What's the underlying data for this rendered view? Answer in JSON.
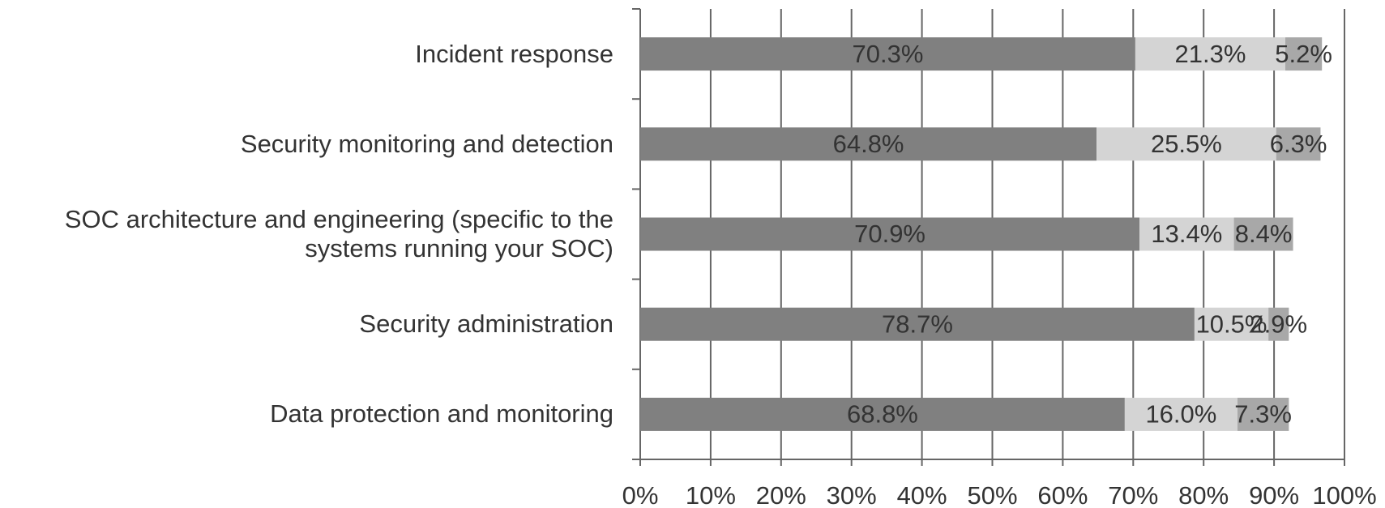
{
  "chart_data": {
    "type": "stacked-bar-horizontal",
    "categories": [
      "Incident response",
      "Security monitoring and detection",
      "SOC architecture and engineering (specific to the systems running your SOC)",
      "Security administration",
      "Data protection and monitoring"
    ],
    "series": [
      {
        "color": "#808080",
        "values": [
          70.3,
          64.8,
          70.9,
          78.7,
          68.8
        ],
        "value_labels": [
          "70.3%",
          "64.8%",
          "70.9%",
          "78.7%",
          "68.8%"
        ]
      },
      {
        "color": "#d4d4d4",
        "values": [
          21.3,
          25.5,
          13.4,
          10.5,
          16.0
        ],
        "value_labels": [
          "21.3%",
          "25.5%",
          "13.4%",
          "10.5%",
          "16.0%"
        ]
      },
      {
        "color": "#a8a8a8",
        "values": [
          5.2,
          6.3,
          8.4,
          2.9,
          7.3
        ],
        "value_labels": [
          "5.2%",
          "6.3%",
          "8.4%",
          "2.9%",
          "7.3%"
        ]
      }
    ],
    "xlim": [
      0,
      100
    ],
    "xticks": [
      {
        "value": 0,
        "label": "0%"
      },
      {
        "value": 10,
        "label": "10%"
      },
      {
        "value": 20,
        "label": "20%"
      },
      {
        "value": 30,
        "label": "30%"
      },
      {
        "value": 40,
        "label": "40%"
      },
      {
        "value": 50,
        "label": "50%"
      },
      {
        "value": 60,
        "label": "60%"
      },
      {
        "value": 70,
        "label": "70%"
      },
      {
        "value": 80,
        "label": "80%"
      },
      {
        "value": 90,
        "label": "90%"
      },
      {
        "value": 100,
        "label": "100%"
      }
    ],
    "grid": true
  }
}
